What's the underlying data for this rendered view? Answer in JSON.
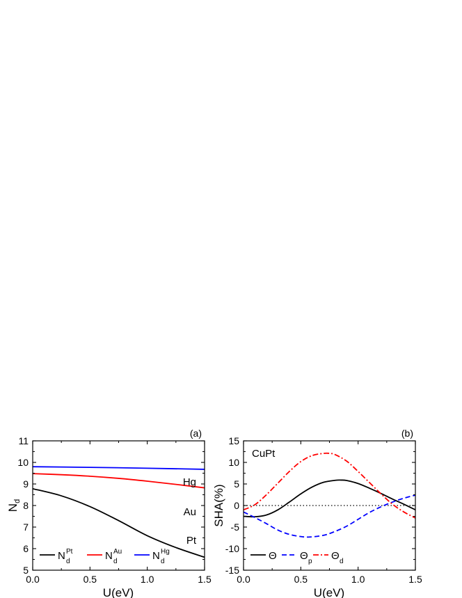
{
  "chart_data": [
    {
      "type": "line",
      "panel_label": "(a)",
      "xlabel": "U(eV)",
      "ylabel_main": "N",
      "ylabel_sub": "d",
      "xlim": [
        0.0,
        1.5
      ],
      "ylim": [
        5,
        11
      ],
      "xticks": [
        0.0,
        0.5,
        1.0,
        1.5
      ],
      "xtick_labels": [
        "0.0",
        "0.5",
        "1.0",
        "1.5"
      ],
      "yticks": [
        5,
        6,
        7,
        8,
        9,
        10,
        11
      ],
      "ytick_labels": [
        "5",
        "6",
        "7",
        "8",
        "9",
        "10",
        "11"
      ],
      "grid": false,
      "legend_position": "bottom",
      "series": [
        {
          "legend_main": "N",
          "legend_sub": "d",
          "legend_sup": "Pt",
          "annotation": "Pt",
          "color": "#000000",
          "dash": "solid",
          "x": [
            0.0,
            0.25,
            0.5,
            0.75,
            1.0,
            1.25,
            1.5
          ],
          "y": [
            8.78,
            8.45,
            7.95,
            7.3,
            6.6,
            6.05,
            5.6
          ]
        },
        {
          "legend_main": "N",
          "legend_sub": "d",
          "legend_sup": "Au",
          "annotation": "Au",
          "color": "#ff0000",
          "dash": "solid",
          "x": [
            0.0,
            0.25,
            0.5,
            0.75,
            1.0,
            1.25,
            1.5
          ],
          "y": [
            9.48,
            9.43,
            9.36,
            9.26,
            9.13,
            8.98,
            8.82
          ]
        },
        {
          "legend_main": "N",
          "legend_sub": "d",
          "legend_sup": "Hg",
          "annotation": "Hg",
          "color": "#0000ff",
          "dash": "solid",
          "x": [
            0.0,
            0.5,
            1.0,
            1.5
          ],
          "y": [
            9.8,
            9.77,
            9.73,
            9.68
          ]
        }
      ]
    },
    {
      "type": "line",
      "panel_label": "(b)",
      "title_inset": "CuPt",
      "xlabel": "U(eV)",
      "ylabel": "SHA(%)",
      "xlim": [
        0.0,
        1.5
      ],
      "ylim": [
        -15,
        15
      ],
      "xticks": [
        0.0,
        0.5,
        1.0,
        1.5
      ],
      "xtick_labels": [
        "0.0",
        "0.5",
        "1.0",
        "1.5"
      ],
      "yticks": [
        -15,
        -10,
        -5,
        0,
        5,
        10,
        15
      ],
      "ytick_labels": [
        "-15",
        "-10",
        "-5",
        "0",
        "5",
        "10",
        "15"
      ],
      "grid": false,
      "legend_position": "bottom",
      "zero_line": {
        "y": 0,
        "color": "#000000",
        "dash": "dotted"
      },
      "series": [
        {
          "legend_main": "Θ",
          "legend_sub": "",
          "color": "#000000",
          "dash": "solid",
          "x": [
            0.0,
            0.1,
            0.2,
            0.3,
            0.4,
            0.5,
            0.6,
            0.7,
            0.8,
            0.85,
            0.9,
            1.0,
            1.1,
            1.2,
            1.3,
            1.4,
            1.5
          ],
          "y": [
            -2.5,
            -2.6,
            -2.2,
            -1.0,
            0.8,
            2.7,
            4.3,
            5.4,
            5.85,
            5.9,
            5.8,
            5.1,
            4.0,
            2.8,
            1.5,
            0.3,
            -1.0
          ]
        },
        {
          "legend_main": "Θ",
          "legend_sub": "p",
          "color": "#0000ff",
          "dash": "dashed",
          "x": [
            0.0,
            0.1,
            0.2,
            0.3,
            0.4,
            0.5,
            0.58,
            0.7,
            0.8,
            0.9,
            1.0,
            1.1,
            1.2,
            1.3,
            1.4,
            1.5
          ],
          "y": [
            -1.5,
            -2.8,
            -4.2,
            -5.7,
            -6.7,
            -7.2,
            -7.3,
            -6.9,
            -6.0,
            -4.8,
            -3.2,
            -1.6,
            -0.3,
            0.8,
            1.7,
            2.4
          ]
        },
        {
          "legend_main": "Θ",
          "legend_sub": "d",
          "color": "#ff0000",
          "dash": "dashdot",
          "x": [
            0.0,
            0.1,
            0.2,
            0.3,
            0.4,
            0.5,
            0.6,
            0.7,
            0.75,
            0.8,
            0.9,
            1.0,
            1.1,
            1.2,
            1.3,
            1.4,
            1.5
          ],
          "y": [
            -1.0,
            0.2,
            2.5,
            5.2,
            7.9,
            10.2,
            11.6,
            12.1,
            12.1,
            11.8,
            10.3,
            7.9,
            5.3,
            2.7,
            0.3,
            -1.5,
            -2.9
          ]
        }
      ]
    }
  ]
}
